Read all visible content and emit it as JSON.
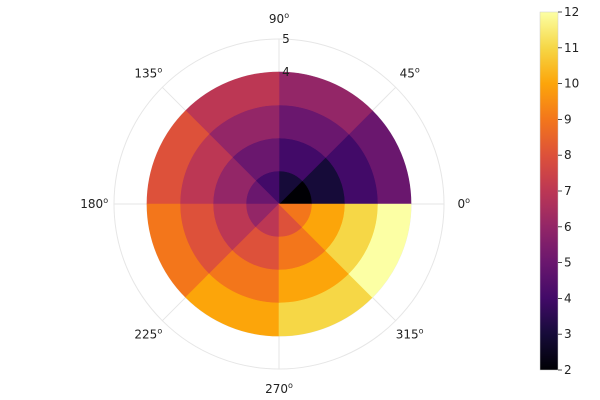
{
  "chart_data": {
    "type": "heatmap",
    "projection": "polar",
    "title": "",
    "angle_ticks": [
      {
        "deg": 0,
        "label": "0"
      },
      {
        "deg": 45,
        "label": "45"
      },
      {
        "deg": 90,
        "label": "90"
      },
      {
        "deg": 135,
        "label": "135"
      },
      {
        "deg": 180,
        "label": "180"
      },
      {
        "deg": 225,
        "label": "225"
      },
      {
        "deg": 270,
        "label": "270"
      },
      {
        "deg": 315,
        "label": "315"
      }
    ],
    "degree_symbol": "o",
    "radial_ticks": [
      {
        "r": 4,
        "label": "4"
      },
      {
        "r": 5,
        "label": "5"
      }
    ],
    "rlim": [
      0,
      5
    ],
    "theta_edges": [
      0,
      45,
      90,
      135,
      180,
      225,
      270,
      315,
      360
    ],
    "r_edges": [
      0,
      1,
      2,
      3,
      4
    ],
    "values": [
      [
        2,
        3,
        4,
        5,
        6,
        7,
        8,
        9
      ],
      [
        3,
        4,
        5,
        6,
        7,
        8,
        9,
        10
      ],
      [
        4,
        5,
        6,
        7,
        8,
        9,
        10,
        11
      ],
      [
        5,
        6,
        7,
        8,
        9,
        10,
        11,
        12
      ]
    ],
    "colormap": "inferno",
    "clim": [
      2,
      12
    ],
    "colorbar_ticks": [
      "2",
      "3",
      "4",
      "5",
      "6",
      "7",
      "8",
      "9",
      "10",
      "11",
      "12"
    ],
    "grid": true,
    "legend": "colorbar-right"
  }
}
